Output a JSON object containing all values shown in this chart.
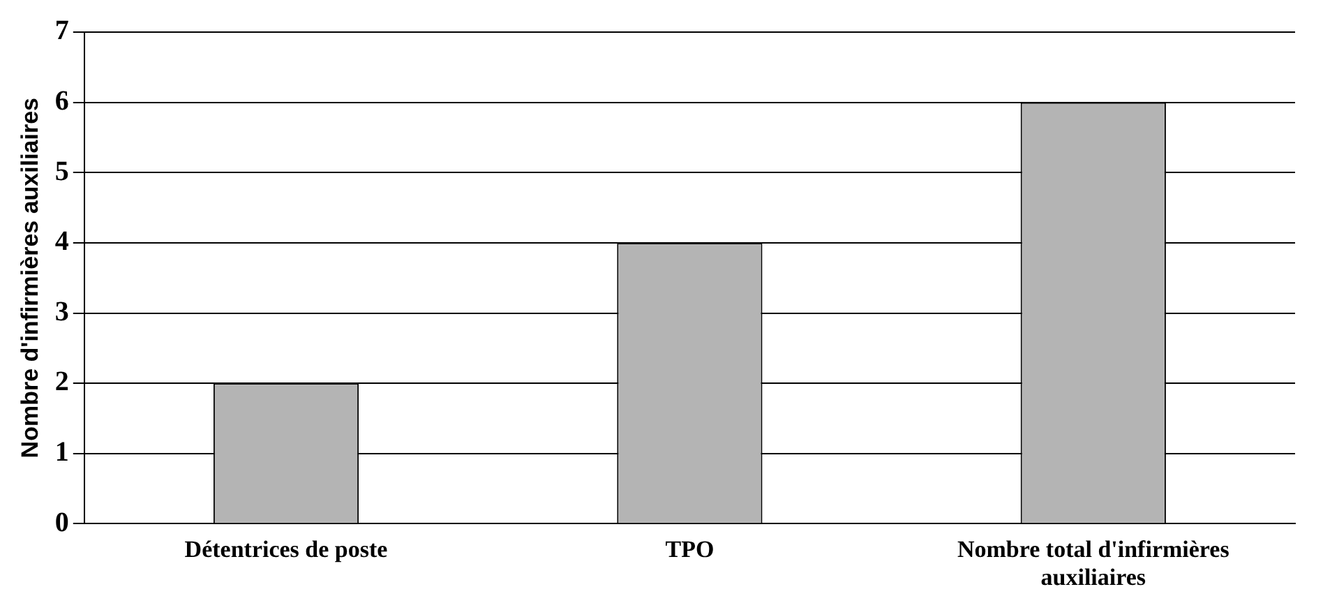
{
  "chart_data": {
    "type": "bar",
    "ylabel": "Nombre d'infirmières auxiliaires",
    "categories": [
      "Détentrices de poste",
      "TPO",
      "Nombre total d'infirmières auxiliaires"
    ],
    "values": [
      2,
      4,
      6
    ],
    "color": "#b4b4b4",
    "ylim": [
      0,
      7
    ],
    "yticks": [
      0,
      1,
      2,
      3,
      4,
      5,
      6,
      7
    ],
    "grid": "y",
    "legend": false
  }
}
